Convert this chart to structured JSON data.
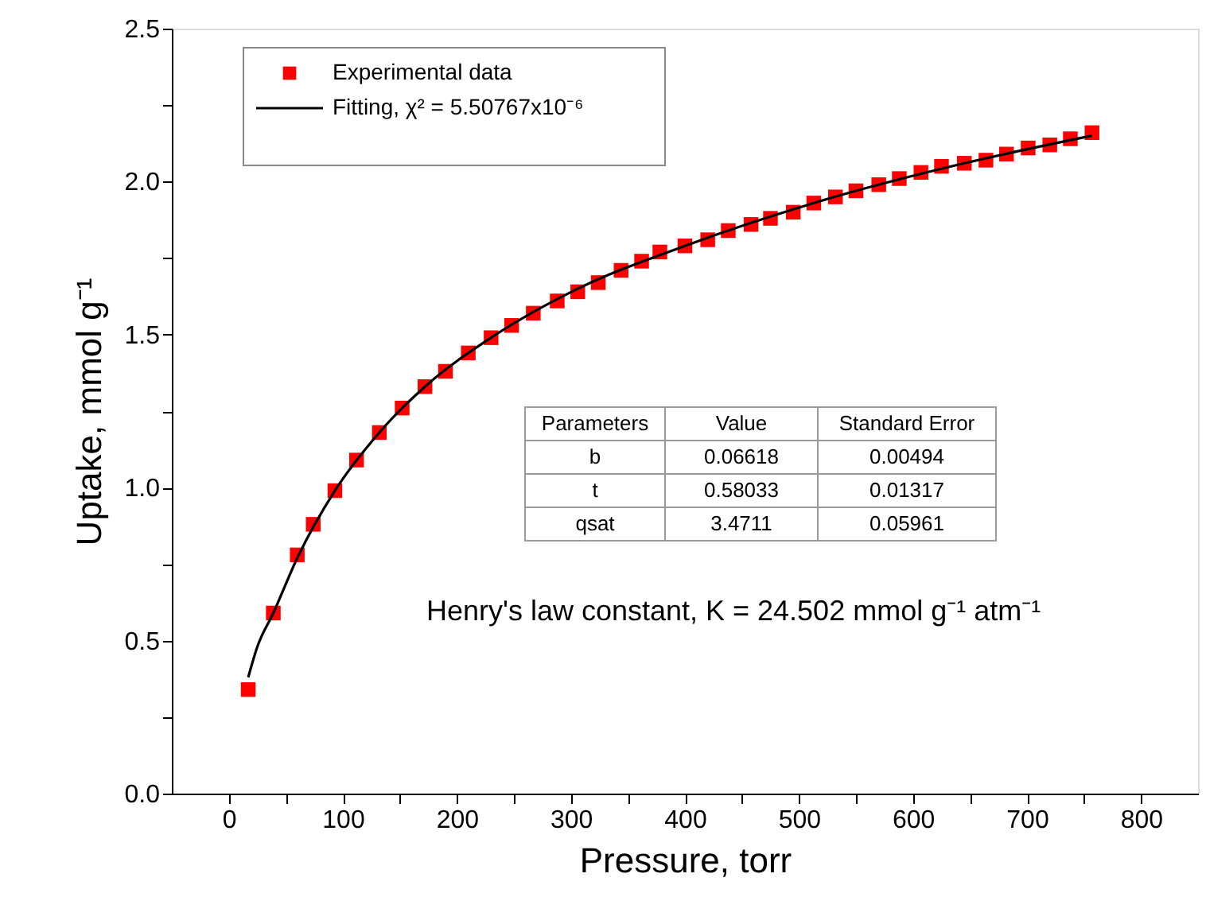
{
  "chart_data": {
    "type": "scatter",
    "xlabel": "Pressure, torr",
    "ylabel": "Uptake, mmol g⁻¹",
    "xlim": [
      -50,
      850
    ],
    "ylim": [
      0,
      2.5
    ],
    "xticks": [
      0,
      {
        "value": 50,
        "label": null
      },
      100,
      {
        "value": 150,
        "label": null
      },
      200,
      {
        "value": 250,
        "label": null
      },
      300,
      {
        "value": 350,
        "label": null
      },
      400,
      {
        "value": 450,
        "label": null
      },
      500,
      {
        "value": 550,
        "label": null
      },
      600,
      {
        "value": 650,
        "label": null
      },
      700,
      {
        "value": 750,
        "label": null
      },
      800
    ],
    "yticks": [
      {
        "value": 0,
        "label": "0.0"
      },
      {
        "value": 0.25,
        "label": null
      },
      {
        "value": 0.5,
        "label": "0.5"
      },
      {
        "value": 0.75,
        "label": null
      },
      {
        "value": 1,
        "label": "1.0"
      },
      {
        "value": 1.25,
        "label": null
      },
      {
        "value": 1.5,
        "label": "1.5"
      },
      {
        "value": 1.75,
        "label": null
      },
      {
        "value": 2,
        "label": "2.0"
      },
      {
        "value": 2.25,
        "label": null
      },
      {
        "value": 2.5,
        "label": "2.5"
      }
    ],
    "grid": false,
    "legend": "top left",
    "series": [
      {
        "name": "Experimental data",
        "marker": "square",
        "color": "#ff0000",
        "x": [
          17,
          39,
          60,
          74,
          93,
          112,
          132,
          152,
          172,
          190,
          210,
          230,
          248,
          267,
          288,
          306,
          324,
          344,
          362,
          378,
          400,
          420,
          438,
          458,
          475,
          495,
          513,
          532,
          550,
          570,
          588,
          607,
          625,
          645,
          664,
          682,
          701,
          720,
          738,
          757
        ],
        "values": [
          0.34,
          0.59,
          0.78,
          0.88,
          0.99,
          1.09,
          1.18,
          1.26,
          1.33,
          1.38,
          1.44,
          1.49,
          1.53,
          1.57,
          1.61,
          1.64,
          1.67,
          1.71,
          1.74,
          1.77,
          1.79,
          1.81,
          1.84,
          1.86,
          1.88,
          1.9,
          1.93,
          1.95,
          1.97,
          1.99,
          2.01,
          2.03,
          2.05,
          2.06,
          2.07,
          2.09,
          2.11,
          2.12,
          2.14,
          2.16
        ]
      },
      {
        "name": "Fitting, χ² = 5.50767x10⁻⁶",
        "type": "line",
        "marker": "none",
        "line_style": "solid",
        "color": "#000000",
        "x": [
          17,
          25,
          39,
          60,
          93,
          132,
          172,
          230,
          306,
          400,
          513,
          645,
          757
        ],
        "values": [
          0.38,
          0.48,
          0.59,
          0.77,
          0.99,
          1.18,
          1.33,
          1.49,
          1.65,
          1.79,
          1.93,
          2.06,
          2.15
        ]
      }
    ],
    "annotations": [
      "Parameters",
      "Value",
      "Standard Error",
      "b",
      "0.06618",
      "0.00494",
      "t",
      "0.58033",
      "0.01317",
      "qsat",
      "3.4711",
      "0.05961",
      "Henry's law constant, K = 24.502 mmol g⁻¹ atm⁻¹"
    ]
  }
}
